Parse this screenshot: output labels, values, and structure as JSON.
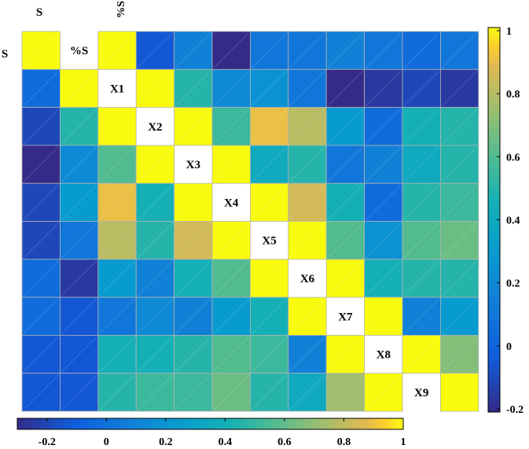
{
  "chart_data": {
    "type": "heatmap",
    "title": "",
    "variables": [
      "S",
      "%S",
      "X1",
      "X2",
      "X3",
      "X4",
      "X5",
      "X6",
      "X7",
      "X8",
      "X9"
    ],
    "top_labels": [
      "S",
      "%S"
    ],
    "left_labels": [
      "S"
    ],
    "diagonal_labels": [
      "%S",
      "X1",
      "X2",
      "X3",
      "X4",
      "X5",
      "X6",
      "X7",
      "X8",
      "X9"
    ],
    "values": [
      [
        1,
        null,
        1,
        -0.05,
        0.15,
        -0.25,
        0.1,
        0.1,
        0.15,
        0.1,
        0.05,
        0.1
      ],
      [
        0.05,
        1,
        null,
        1,
        0.5,
        0.2,
        0.25,
        0.1,
        -0.25,
        -0.15,
        -0.1,
        -0.15
      ],
      [
        -0.1,
        0.5,
        1,
        null,
        1,
        0.55,
        0.9,
        0.8,
        0.3,
        0.05,
        0.45,
        0.5
      ],
      [
        -0.25,
        0.2,
        0.6,
        1,
        null,
        1,
        0.4,
        0.5,
        0.1,
        0.15,
        0.4,
        0.5
      ],
      [
        -0.1,
        0.3,
        0.9,
        0.45,
        1,
        null,
        1,
        0.85,
        0.45,
        0.05,
        0.5,
        0.55
      ],
      [
        -0.1,
        0.1,
        0.8,
        0.5,
        0.85,
        1,
        null,
        1,
        0.6,
        0.25,
        0.6,
        0.65
      ],
      [
        0.05,
        -0.15,
        0.3,
        0.15,
        0.45,
        0.6,
        1,
        null,
        1,
        0.45,
        0.5,
        0.5
      ],
      [
        0.05,
        -0.05,
        0.1,
        0.2,
        0.15,
        0.3,
        0.45,
        1,
        null,
        1,
        0.15,
        0.3
      ],
      [
        -0.05,
        -0.05,
        0.45,
        0.45,
        0.5,
        0.6,
        0.55,
        0.15,
        1,
        null,
        1,
        0.7
      ],
      [
        -0.05,
        -0.05,
        0.5,
        0.55,
        0.55,
        0.65,
        0.5,
        0.4,
        0.75,
        1,
        null,
        1
      ]
    ],
    "colorbar_right": {
      "range": [
        -0.2,
        1
      ],
      "tick_labels": [
        "1",
        "0.8",
        "0.6",
        "0.4",
        "0.2",
        "0",
        "-0.2"
      ]
    },
    "colorbar_bottom": {
      "range": [
        -0.3,
        1
      ],
      "tick_labels": [
        "-0.2",
        "0",
        "0.2",
        "0.4",
        "0.6",
        "0.8",
        "1"
      ]
    },
    "colormap": "parula"
  }
}
